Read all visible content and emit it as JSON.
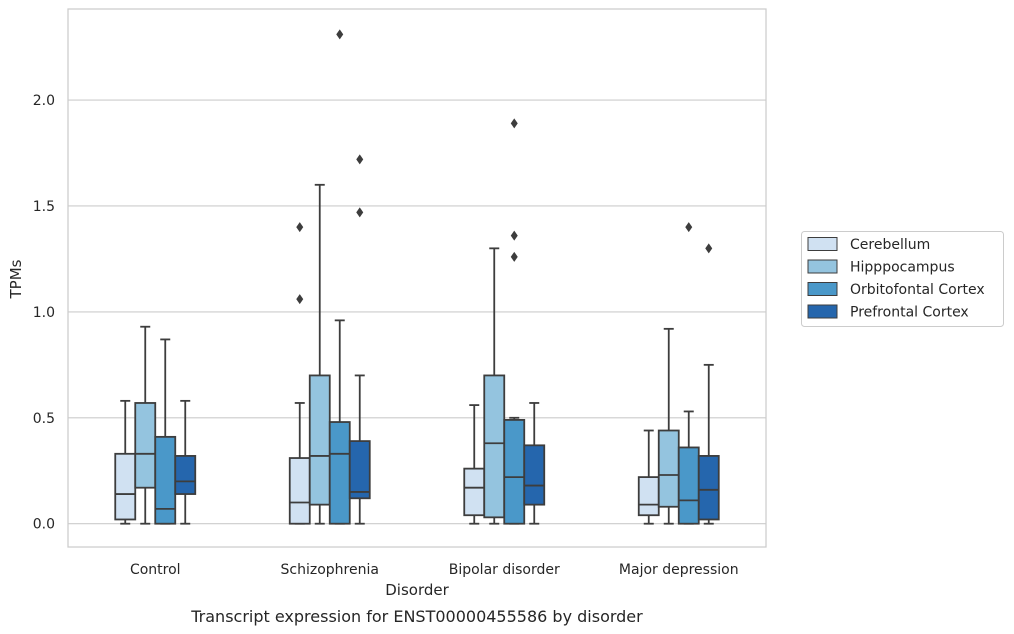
{
  "caption": "Transcript expression for ENST00000455586 by disorder",
  "colors": {
    "Cerebellum": "#d0e1f2",
    "Hipppocampus": "#94c4df",
    "Orbitofontal Cortex": "#4a98c9",
    "Prefrontal Cortex": "#2566ad",
    "box_edge": "#3d3d3d",
    "grid": "#cccccc",
    "frame": "#cccccc"
  },
  "chart_data": {
    "type": "boxplot",
    "xlabel": "Disorder",
    "ylabel": "TPMs",
    "ylim": [
      -0.11,
      2.43
    ],
    "yticks": [
      "0.0",
      "0.5",
      "1.0",
      "1.5",
      "2.0"
    ],
    "grid": "horizontal",
    "legend_position": "right",
    "categories": [
      "Control",
      "Schizophrenia",
      "Bipolar disorder",
      "Major depression"
    ],
    "series": [
      {
        "name": "Cerebellum",
        "boxes": [
          {
            "whisker_low": 0.0,
            "q1": 0.02,
            "median": 0.14,
            "q3": 0.33,
            "whisker_high": 0.58,
            "outliers": []
          },
          {
            "whisker_low": 0.0,
            "q1": 0.0,
            "median": 0.1,
            "q3": 0.31,
            "whisker_high": 0.57,
            "outliers": [
              1.06,
              1.4
            ]
          },
          {
            "whisker_low": 0.0,
            "q1": 0.04,
            "median": 0.17,
            "q3": 0.26,
            "whisker_high": 0.56,
            "outliers": []
          },
          {
            "whisker_low": 0.0,
            "q1": 0.04,
            "median": 0.09,
            "q3": 0.22,
            "whisker_high": 0.44,
            "outliers": []
          }
        ]
      },
      {
        "name": "Hipppocampus",
        "boxes": [
          {
            "whisker_low": 0.0,
            "q1": 0.17,
            "median": 0.33,
            "q3": 0.57,
            "whisker_high": 0.93,
            "outliers": []
          },
          {
            "whisker_low": 0.0,
            "q1": 0.09,
            "median": 0.32,
            "q3": 0.7,
            "whisker_high": 1.6,
            "outliers": []
          },
          {
            "whisker_low": 0.0,
            "q1": 0.03,
            "median": 0.38,
            "q3": 0.7,
            "whisker_high": 1.3,
            "outliers": []
          },
          {
            "whisker_low": 0.0,
            "q1": 0.08,
            "median": 0.23,
            "q3": 0.44,
            "whisker_high": 0.92,
            "outliers": []
          }
        ]
      },
      {
        "name": "Orbitofontal Cortex",
        "boxes": [
          {
            "whisker_low": 0.0,
            "q1": 0.0,
            "median": 0.07,
            "q3": 0.41,
            "whisker_high": 0.87,
            "outliers": []
          },
          {
            "whisker_low": 0.0,
            "q1": 0.0,
            "median": 0.33,
            "q3": 0.48,
            "whisker_high": 0.96,
            "outliers": [
              2.31
            ]
          },
          {
            "whisker_low": 0.0,
            "q1": 0.0,
            "median": 0.22,
            "q3": 0.49,
            "whisker_high": 0.5,
            "outliers": [
              1.26,
              1.36,
              1.89
            ]
          },
          {
            "whisker_low": 0.0,
            "q1": 0.0,
            "median": 0.11,
            "q3": 0.36,
            "whisker_high": 0.53,
            "outliers": [
              1.4
            ]
          }
        ]
      },
      {
        "name": "Prefrontal Cortex",
        "boxes": [
          {
            "whisker_low": 0.0,
            "q1": 0.14,
            "median": 0.2,
            "q3": 0.32,
            "whisker_high": 0.58,
            "outliers": []
          },
          {
            "whisker_low": 0.0,
            "q1": 0.12,
            "median": 0.15,
            "q3": 0.39,
            "whisker_high": 0.7,
            "outliers": [
              1.47,
              1.72
            ]
          },
          {
            "whisker_low": 0.0,
            "q1": 0.09,
            "median": 0.18,
            "q3": 0.37,
            "whisker_high": 0.57,
            "outliers": []
          },
          {
            "whisker_low": 0.0,
            "q1": 0.02,
            "median": 0.16,
            "q3": 0.32,
            "whisker_high": 0.75,
            "outliers": [
              1.3
            ]
          }
        ]
      }
    ]
  }
}
